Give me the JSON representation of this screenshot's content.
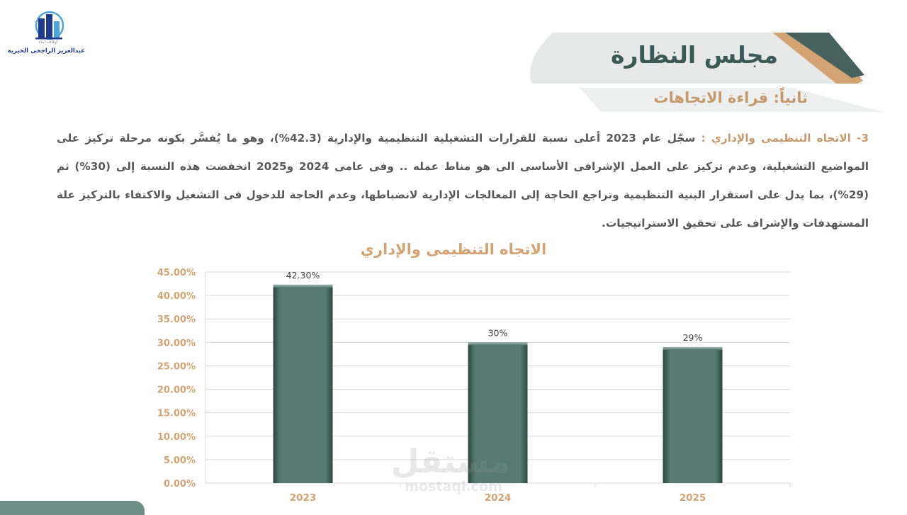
{
  "logo": {
    "subtitle": "أوقاف أبناء",
    "name": "عبدالعزيز الراجحي الخيرية",
    "colors": {
      "navy": "#1f3a8a",
      "sky": "#4fa3d9"
    }
  },
  "header": {
    "title": "مجلس النظارة",
    "section": "ثانياً: قراءة الاتجاهات"
  },
  "body": {
    "lead": "3- الاتجاه التنظيمى والإداري : ",
    "text": "سجّل عام 2023 أعلى نسبة للقرارات التشغيلية التنظيمية والإدارية (42.3%)، وهو ما يُفسَّر بكونه مرحلة تركيز على المواضيع التشغيلية، وعدم تركيز على العمل الإشرافى الأساسى الى هو مناط عمله .. وفى عامى 2024 و2025 انخفضت هذه النسبة إلى (30%) ثم (29%)، بما يدل على استقرار البنية التنظيمية وتراجع الحاجة إلى المعالجات الإدارية لانضباطها، وعدم الحاجة للدخول فى التشغيل والاكتفاء بالتركيز علة المستهدفات والإشراف على تحقيق الاستراتيجيات."
  },
  "chart_data": {
    "type": "bar",
    "title": "الاتجاه التنظيمى والإداري",
    "categories": [
      "2023",
      "2024",
      "2025"
    ],
    "values": [
      42.3,
      30,
      29
    ],
    "data_labels": [
      "42.30%",
      "30%",
      "29%"
    ],
    "y_ticks": [
      "0.00%",
      "5.00%",
      "10.00%",
      "15.00%",
      "20.00%",
      "25.00%",
      "30.00%",
      "35.00%",
      "40.00%",
      "45.00%"
    ],
    "ylim": [
      0,
      45
    ],
    "grid": true,
    "legend": "none",
    "colors": {
      "bar": "#577a73",
      "bar_dark": "#2e4541",
      "tick": "#d4a373",
      "grid": "#d9d9d9"
    }
  },
  "watermark": {
    "arabic": "مستقل",
    "latin": "mostaql.com"
  }
}
